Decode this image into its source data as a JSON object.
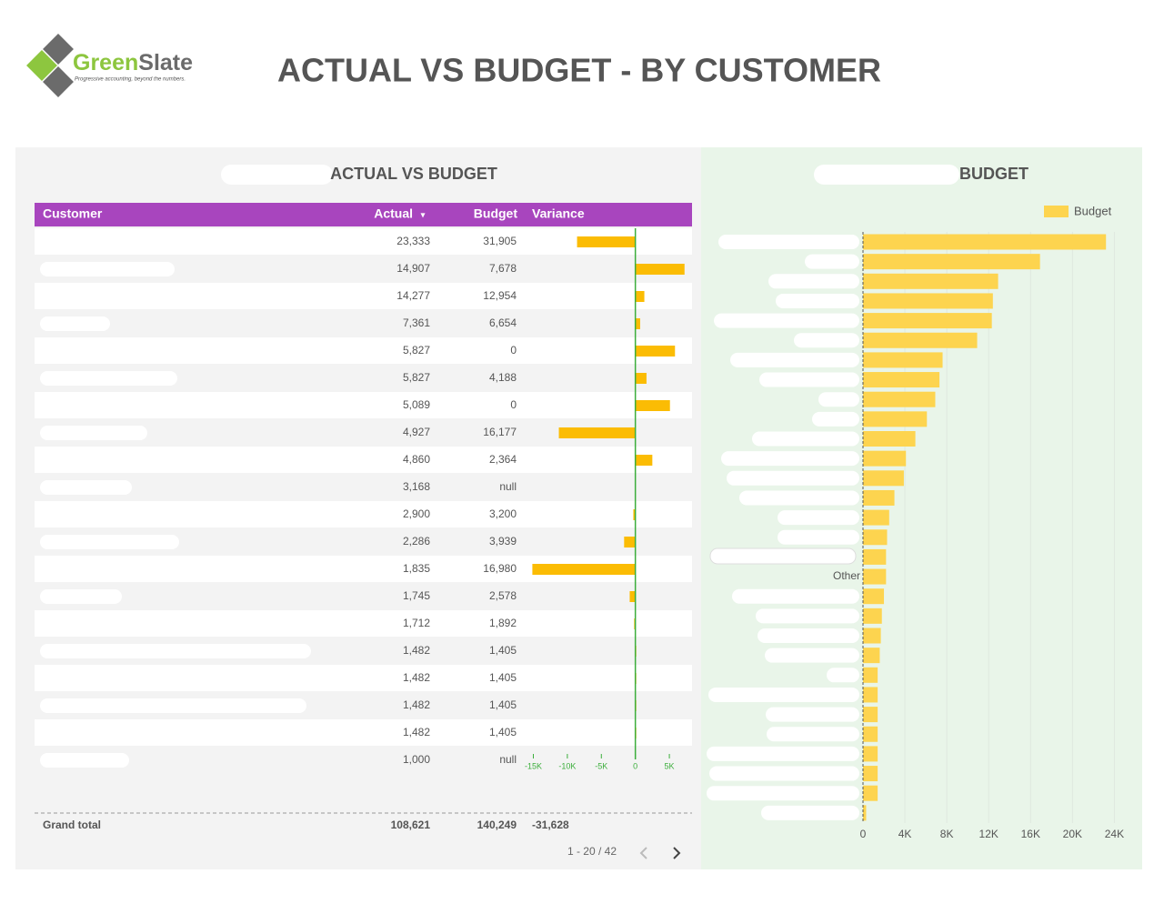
{
  "header": {
    "logo_green": "Green",
    "logo_slate": "Slate",
    "tagline": "Progressive accounting, beyond the numbers.",
    "title": "ACTUAL VS BUDGET - BY CUSTOMER"
  },
  "table": {
    "title": "ACTUAL VS BUDGET",
    "columns": [
      "Customer",
      "Actual",
      "Budget",
      "Variance"
    ],
    "sort_indicator": "▾",
    "rows": [
      [
        "23,333",
        "31,905"
      ],
      [
        "14,907",
        "7,678"
      ],
      [
        "14,277",
        "12,954"
      ],
      [
        "7,361",
        "6,654"
      ],
      [
        "5,827",
        "0"
      ],
      [
        "5,827",
        "4,188"
      ],
      [
        "5,089",
        "0"
      ],
      [
        "4,927",
        "16,177"
      ],
      [
        "4,860",
        "2,364"
      ],
      [
        "3,168",
        "null"
      ],
      [
        "2,900",
        "3,200"
      ],
      [
        "2,286",
        "3,939"
      ],
      [
        "1,835",
        "16,980"
      ],
      [
        "1,745",
        "2,578"
      ],
      [
        "1,712",
        "1,892"
      ],
      [
        "1,482",
        "1,405"
      ],
      [
        "1,482",
        "1,405"
      ],
      [
        "1,482",
        "1,405"
      ],
      [
        "1,482",
        "1,405"
      ],
      [
        "1,000",
        "null"
      ]
    ],
    "variance": [
      -8572,
      7229,
      1323,
      707,
      5827,
      1639,
      5089,
      -11250,
      2496,
      null,
      -300,
      -1653,
      -15145,
      -833,
      -180,
      77,
      77,
      77,
      77,
      null
    ],
    "variance_color": "#fbbc04",
    "variance_xlim": [
      -15200,
      8200
    ],
    "variance_xticks": [
      {
        "value": -15000,
        "label": "-15K"
      },
      {
        "value": -10000,
        "label": "-10K"
      },
      {
        "value": -5000,
        "label": "-5K"
      },
      0,
      {
        "value": 5000,
        "label": "5K"
      }
    ],
    "total": [
      "Grand total",
      "108,621",
      "140,249",
      "-31,628"
    ],
    "pagination": "1 - 20 / 42"
  },
  "chart_data": {
    "type": "bar",
    "orientation": "horizontal",
    "title": "BUDGET",
    "categories": [
      null,
      null,
      null,
      null,
      null,
      null,
      null,
      null,
      null,
      null,
      null,
      null,
      null,
      null,
      null,
      null,
      null,
      "Other",
      null,
      null,
      null,
      null,
      null,
      null,
      null,
      null,
      null,
      null,
      null,
      null
    ],
    "series": [
      {
        "name": "Budget",
        "color": "#fdd44f",
        "values": [
          23200,
          16900,
          12900,
          12400,
          12300,
          10900,
          7600,
          7300,
          6900,
          6100,
          5000,
          4100,
          3900,
          3000,
          2500,
          2300,
          2200,
          2200,
          2000,
          1800,
          1700,
          1600,
          1400,
          1400,
          1400,
          1400,
          1400,
          1400,
          1400,
          300
        ]
      }
    ],
    "xlim": [
      0,
      25700
    ],
    "xticks": [
      0,
      {
        "value": 4000,
        "label": "4K"
      },
      {
        "value": 8000,
        "label": "8K"
      },
      {
        "value": 12000,
        "label": "12K"
      },
      {
        "value": 16000,
        "label": "16K"
      },
      {
        "value": 20000,
        "label": "20K"
      },
      {
        "value": 24000,
        "label": "24K"
      }
    ],
    "grid": true,
    "legend": "top-right"
  }
}
